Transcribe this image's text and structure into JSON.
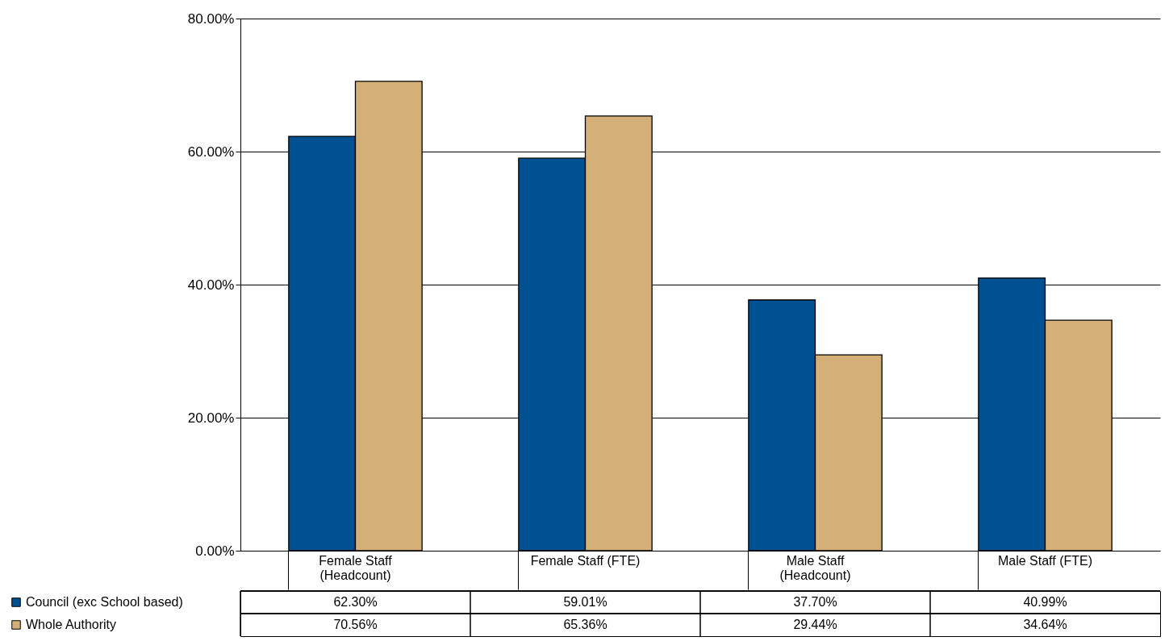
{
  "chart_data": {
    "type": "bar",
    "categories": [
      "Female Staff (Headcount)",
      "Female Staff (FTE)",
      "Male Staff (Headcount)",
      "Male Staff (FTE)"
    ],
    "series": [
      {
        "name": "Council (exc School based)",
        "color": "#005191",
        "values": [
          62.3,
          59.01,
          37.7,
          40.99
        ],
        "value_labels": [
          "62.30%",
          "59.01%",
          "37.70%",
          "40.99%"
        ]
      },
      {
        "name": "Whole Authority",
        "color": "#d4b078",
        "values": [
          70.56,
          65.36,
          29.44,
          34.64
        ],
        "value_labels": [
          "70.56%",
          "65.36%",
          "29.44%",
          "34.64%"
        ]
      }
    ],
    "ylim": [
      0,
      80
    ],
    "yticks": [
      {
        "value": 0,
        "label": "0.00%"
      },
      {
        "value": 20,
        "label": "20.00%"
      },
      {
        "value": 40,
        "label": "40.00%"
      },
      {
        "value": 60,
        "label": "60.00%"
      },
      {
        "value": 80,
        "label": "80.00%"
      }
    ],
    "grid": "y",
    "legend": "bottom left",
    "data_labels": true
  }
}
